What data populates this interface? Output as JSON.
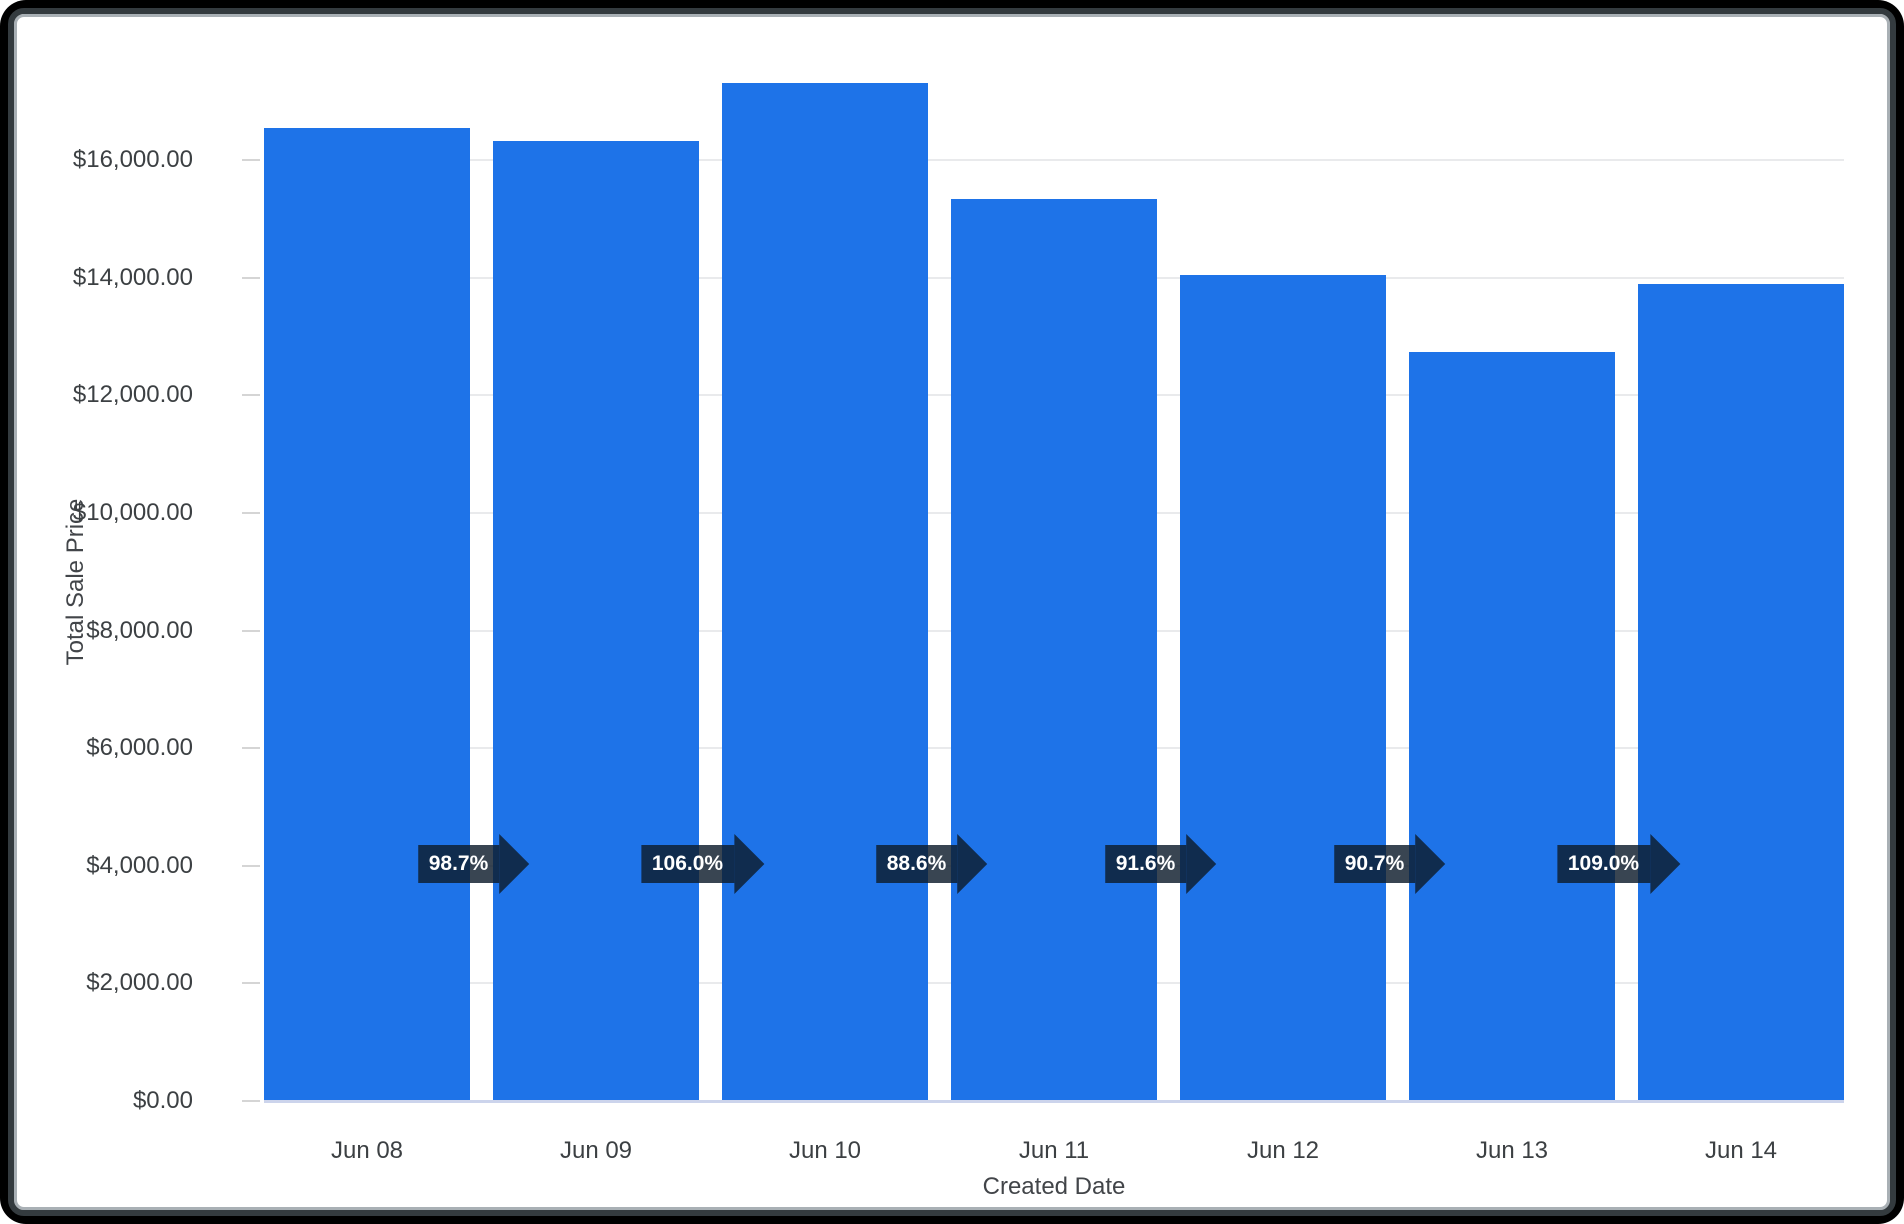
{
  "frame": {
    "outer_color": "#000000",
    "border_color": "#343b3f",
    "inner_edge_color": "#a9b0b5",
    "background": "#ffffff"
  },
  "chart_data": {
    "type": "bar",
    "title": "",
    "xlabel": "Created Date",
    "ylabel": "Total Sale Price",
    "categories": [
      "Jun 08",
      "Jun 09",
      "Jun 10",
      "Jun 11",
      "Jun 12",
      "Jun 13",
      "Jun 14"
    ],
    "values": [
      16540,
      16325,
      17305,
      15330,
      14045,
      12740,
      13885
    ],
    "value_unit": "USD",
    "period_over_period_labels": [
      "98.7%",
      "106.0%",
      "88.6%",
      "91.6%",
      "90.7%",
      "109.0%"
    ],
    "ytick_values": [
      0,
      2000,
      4000,
      6000,
      8000,
      10000,
      12000,
      14000,
      16000
    ],
    "ytick_labels": [
      "$0.00",
      "$2,000.00",
      "$4,000.00",
      "$6,000.00",
      "$8,000.00",
      "$10,000.00",
      "$12,000.00",
      "$14,000.00",
      "$16,000.00"
    ],
    "ylim": [
      0,
      17650
    ],
    "grid": "horizontal-on",
    "legend": "none",
    "bar_color": "#1e73e8",
    "annotation_bg_color": "rgba(13,28,44,0.82)",
    "annotation_text_color": "#ffffff",
    "gridline_color": "#e9eaec",
    "baseline_color": "#ccd4ec",
    "axis_text_color": "#3c4043"
  }
}
